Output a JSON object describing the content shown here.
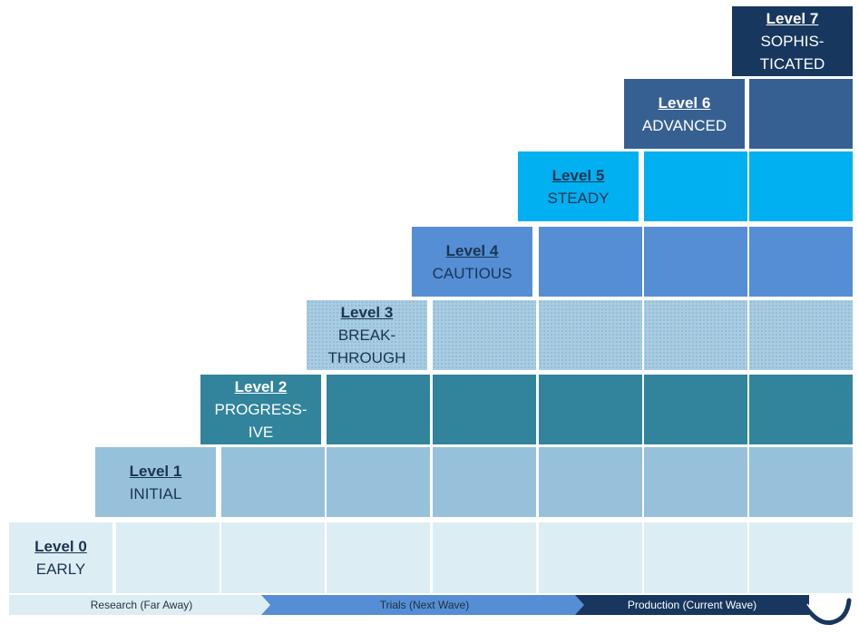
{
  "levels": [
    {
      "title": "Level 0",
      "name": "EARLY",
      "fill": "#ddedf4",
      "text_color": "#1a3553",
      "dotted": false
    },
    {
      "title": "Level 1",
      "name": "INITIAL",
      "fill": "#97c1da",
      "text_color": "#1a3553",
      "dotted": false
    },
    {
      "title": "Level 2",
      "name": "PROGRESS-\nIVE",
      "fill": "#31849b",
      "text_color": "#ffffff",
      "dotted": false
    },
    {
      "title": "Level 3",
      "name": "BREAK-\nTHROUGH",
      "fill": "#a8cde2",
      "text_color": "#1a3553",
      "dotted": true
    },
    {
      "title": "Level 4",
      "name": "CAUTIOUS",
      "fill": "#558ed5",
      "text_color": "#1a3553",
      "dotted": false
    },
    {
      "title": "Level 5",
      "name": "STEADY",
      "fill": "#00b0f0",
      "text_color": "#1a3553",
      "dotted": false
    },
    {
      "title": "Level 6",
      "name": "ADVANCED",
      "fill": "#376092",
      "text_color": "#ffffff",
      "dotted": false
    },
    {
      "title": "Level 7",
      "name": "SOPHIS-\nTICATED",
      "fill": "#17375e",
      "text_color": "#ffffff",
      "dotted": false
    }
  ],
  "phases": [
    {
      "label": "Research (Far Away)",
      "fill": "#ddedf4"
    },
    {
      "label": "Trials (Next Wave)",
      "fill": "#558ed5"
    },
    {
      "label": "Production (Current Wave)",
      "fill": "#17375e"
    }
  ],
  "icons": {
    "wave": "wave-arc-icon"
  }
}
